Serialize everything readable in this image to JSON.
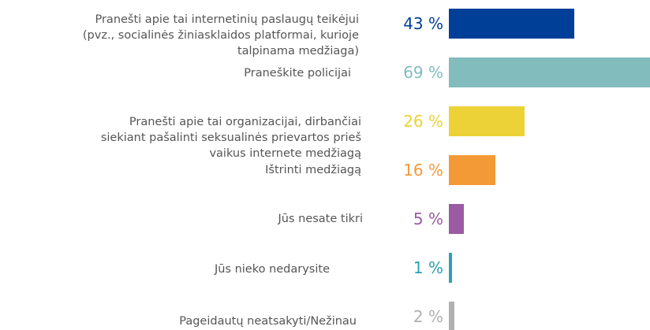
{
  "chart_data": {
    "type": "bar",
    "categories": [
      "Pranešti apie tai internetinių paslaugų teikėjui\n(pvz., socialinės žiniasklaidos platformai, kurioje\ntalpinama medžiaga)",
      "Praneškite policijai",
      "Pranešti apie tai organizacijai, dirbančiai\nsiekiant pašalinti seksualinės prievartos prieš\nvaikus internete medžiagą",
      "Ištrinti medžiagą",
      "Jūs nesate tikri",
      "Jūs nieko nedarysite",
      "Pageidautų neatsakyti/Nežinau"
    ],
    "values": [
      43,
      69,
      26,
      16,
      5,
      1,
      2
    ],
    "value_labels": [
      "43 %",
      "69 %",
      "26 %",
      "16 %",
      "5 %",
      "1 %",
      "2 %"
    ],
    "colors": [
      "#003f98",
      "#82bcbd",
      "#ecd237",
      "#f39a37",
      "#9a5ba3",
      "#2aa1b3",
      "#b0b0b0"
    ]
  }
}
